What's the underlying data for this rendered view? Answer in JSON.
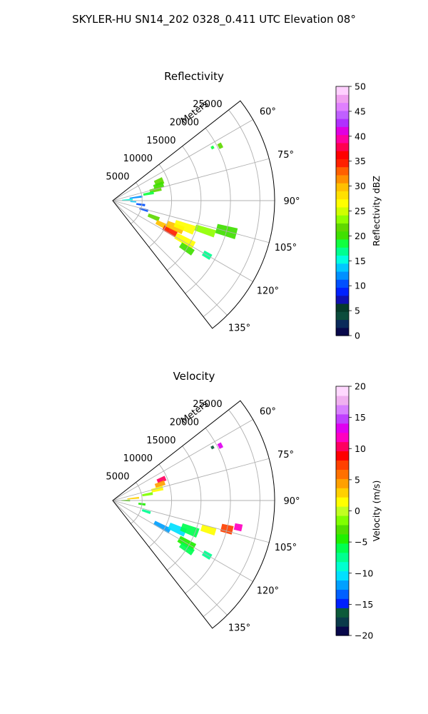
{
  "figure": {
    "title": "SKYLER-HU  SN14_202  0328_0.411 UTC Elevation 08°"
  },
  "chart_data": [
    {
      "type": "heatmap",
      "subtype": "polar-sector",
      "title": "Reflectivity",
      "radial_label": "Meters",
      "radial_ticks": [
        5000,
        10000,
        15000,
        20000,
        25000
      ],
      "radial_tick_labels": [
        "5000",
        "10000",
        "15000",
        "20000",
        "25000"
      ],
      "range_max": 27500,
      "azimuth_range_deg": [
        52,
        142
      ],
      "azimuth_ticks": [
        60,
        75,
        90,
        105,
        120,
        135
      ],
      "azimuth_tick_labels": [
        "60°",
        "75°",
        "90°",
        "105°",
        "120°",
        "135°"
      ],
      "grid": true,
      "colorbar": {
        "label": "Reflectivity dBZ",
        "range": [
          0,
          50
        ],
        "ticks": [
          0,
          5,
          10,
          15,
          20,
          25,
          30,
          35,
          40,
          45,
          50
        ],
        "tick_labels": [
          "0",
          "5",
          "10",
          "15",
          "20",
          "25",
          "30",
          "35",
          "40",
          "45",
          "50"
        ],
        "colors": [
          "#08084a",
          "#0a2a5a",
          "#0c4c3c",
          "#063a2a",
          "#1010b0",
          "#0020ff",
          "#0050ff",
          "#0090ff",
          "#00c8ff",
          "#00ffe0",
          "#00ff90",
          "#10ff40",
          "#40e000",
          "#60d800",
          "#90ff00",
          "#d0ff00",
          "#ffff00",
          "#ffe000",
          "#ffc000",
          "#ff9000",
          "#ff6000",
          "#ff2000",
          "#ff0000",
          "#ff0050",
          "#ff00a0",
          "#e000e0",
          "#b030ff",
          "#c060ff",
          "#e080ff",
          "#f0a0f0",
          "#ffd0ff"
        ]
      },
      "cells": [
        {
          "az": 63,
          "r": 20500,
          "dr": 700,
          "daz": 2.5,
          "value": 21
        },
        {
          "az": 62,
          "r": 19200,
          "dr": 500,
          "daz": 1.5,
          "value": 19
        },
        {
          "az": 68,
          "r": 8500,
          "dr": 1500,
          "daz": 7,
          "value": 22
        },
        {
          "az": 72,
          "r": 8200,
          "dr": 1700,
          "daz": 6,
          "value": 20
        },
        {
          "az": 76,
          "r": 7500,
          "dr": 2000,
          "daz": 5,
          "value": 21
        },
        {
          "az": 79,
          "r": 6200,
          "dr": 1800,
          "daz": 4,
          "value": 18
        },
        {
          "az": 82,
          "r": 4000,
          "dr": 2200,
          "daz": 4,
          "value": 12
        },
        {
          "az": 87,
          "r": 2500,
          "dr": 1800,
          "daz": 5,
          "value": 15
        },
        {
          "az": 93,
          "r": 3500,
          "dr": 1000,
          "daz": 3,
          "value": 13
        },
        {
          "az": 98,
          "r": 4800,
          "dr": 1500,
          "daz": 4,
          "value": 10
        },
        {
          "az": 106,
          "r": 5500,
          "dr": 1500,
          "daz": 4,
          "value": 11
        },
        {
          "az": 112,
          "r": 7500,
          "dr": 2000,
          "daz": 5,
          "value": 22
        },
        {
          "az": 116,
          "r": 9500,
          "dr": 2500,
          "daz": 5,
          "value": 30
        },
        {
          "az": 118,
          "r": 11000,
          "dr": 2500,
          "daz": 5,
          "value": 35
        },
        {
          "az": 113,
          "r": 11500,
          "dr": 3000,
          "daz": 6,
          "value": 30
        },
        {
          "az": 110,
          "r": 13000,
          "dr": 3500,
          "daz": 6,
          "value": 27
        },
        {
          "az": 119,
          "r": 14000,
          "dr": 3500,
          "daz": 5,
          "value": 26
        },
        {
          "az": 108,
          "r": 16500,
          "dr": 3500,
          "daz": 4,
          "value": 23
        },
        {
          "az": 105,
          "r": 20000,
          "dr": 3500,
          "daz": 5,
          "value": 20
        },
        {
          "az": 123,
          "r": 15000,
          "dr": 2500,
          "daz": 4,
          "value": 20
        },
        {
          "az": 120,
          "r": 18500,
          "dr": 1500,
          "daz": 3,
          "value": 17
        }
      ]
    },
    {
      "type": "heatmap",
      "subtype": "polar-sector",
      "title": "Velocity",
      "radial_label": "Meters",
      "radial_ticks": [
        5000,
        10000,
        15000,
        20000,
        25000
      ],
      "radial_tick_labels": [
        "5000",
        "10000",
        "15000",
        "20000",
        "25000"
      ],
      "range_max": 27500,
      "azimuth_range_deg": [
        52,
        142
      ],
      "azimuth_ticks": [
        60,
        75,
        90,
        105,
        120,
        135
      ],
      "azimuth_tick_labels": [
        "60°",
        "75°",
        "90°",
        "105°",
        "120°",
        "135°"
      ],
      "grid": true,
      "colorbar": {
        "label": "Velocity (m/s)",
        "range": [
          -20,
          20
        ],
        "ticks": [
          -20,
          -15,
          -10,
          -5,
          0,
          5,
          10,
          15,
          20
        ],
        "tick_labels": [
          "−20",
          "−15",
          "−10",
          "−5",
          "0",
          "5",
          "10",
          "15",
          "20"
        ],
        "colors": [
          "#08084a",
          "#0a3a4a",
          "#0c5a3a",
          "#0020ff",
          "#0060ff",
          "#00a0ff",
          "#00e0ff",
          "#00ffd0",
          "#00ff90",
          "#00ff50",
          "#20f000",
          "#50e000",
          "#80ff00",
          "#c0ff20",
          "#ffff00",
          "#ffd000",
          "#ffa000",
          "#ff7000",
          "#ff4000",
          "#ff0000",
          "#ff0060",
          "#ff00c0",
          "#e000f0",
          "#c040ff",
          "#d880ff",
          "#f0b0f0",
          "#ffd8ff"
        ]
      },
      "cells": [
        {
          "az": 63,
          "r": 20500,
          "dr": 700,
          "daz": 2.5,
          "value": 13
        },
        {
          "az": 62,
          "r": 19200,
          "dr": 500,
          "daz": 1.5,
          "value": -16
        },
        {
          "az": 67,
          "r": 9000,
          "dr": 1500,
          "daz": 5,
          "value": 10
        },
        {
          "az": 71,
          "r": 8500,
          "dr": 1700,
          "daz": 5,
          "value": 5
        },
        {
          "az": 76,
          "r": 7800,
          "dr": 2000,
          "daz": 5,
          "value": 2
        },
        {
          "az": 80,
          "r": 6000,
          "dr": 1800,
          "daz": 4,
          "value": -1
        },
        {
          "az": 84,
          "r": 3500,
          "dr": 2000,
          "daz": 4,
          "value": 3
        },
        {
          "az": 90,
          "r": 2200,
          "dr": 1500,
          "daz": 6,
          "value": -3
        },
        {
          "az": 97,
          "r": 5000,
          "dr": 1200,
          "daz": 4,
          "value": -4
        },
        {
          "az": 108,
          "r": 6000,
          "dr": 1500,
          "daz": 4,
          "value": -7
        },
        {
          "az": 118,
          "r": 9500,
          "dr": 3000,
          "daz": 5,
          "value": -12
        },
        {
          "az": 114,
          "r": 12000,
          "dr": 3000,
          "daz": 6,
          "value": -10
        },
        {
          "az": 111,
          "r": 14000,
          "dr": 3000,
          "daz": 6,
          "value": -6
        },
        {
          "az": 120,
          "r": 14500,
          "dr": 3000,
          "daz": 5,
          "value": -5
        },
        {
          "az": 107,
          "r": 17000,
          "dr": 2500,
          "daz": 4,
          "value": 1
        },
        {
          "az": 104,
          "r": 20000,
          "dr": 2000,
          "daz": 4,
          "value": 7
        },
        {
          "az": 102,
          "r": 21800,
          "dr": 1300,
          "daz": 3,
          "value": 12
        },
        {
          "az": 123,
          "r": 15000,
          "dr": 2500,
          "daz": 4,
          "value": -6
        },
        {
          "az": 120,
          "r": 18500,
          "dr": 1500,
          "daz": 3,
          "value": -8
        }
      ]
    }
  ]
}
